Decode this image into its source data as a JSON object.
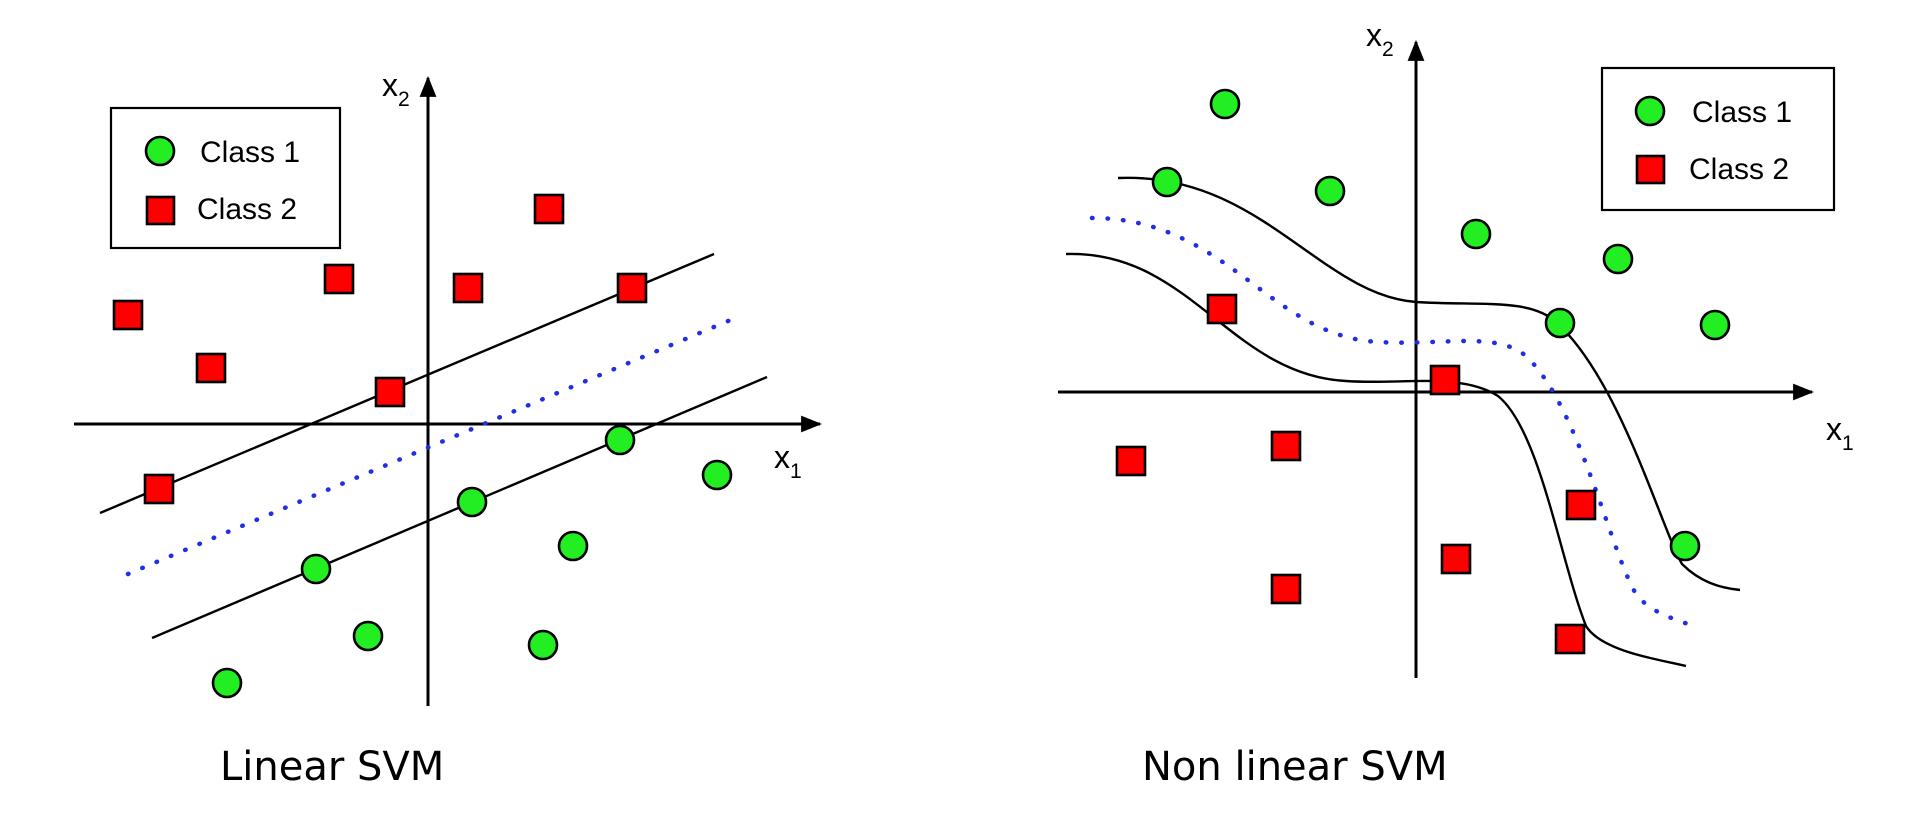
{
  "diagrams": [
    {
      "caption": "Linear SVM",
      "legend": {
        "class1": "Class 1",
        "class2": "Class 2"
      },
      "axes": {
        "x": "x",
        "x_sub": "1",
        "y": "x",
        "y_sub": "2"
      }
    },
    {
      "caption": "Non linear SVM",
      "legend": {
        "class1": "Class 1",
        "class2": "Class 2"
      },
      "axes": {
        "x": "x",
        "x_sub": "1",
        "y": "x",
        "y_sub": "2"
      }
    }
  ],
  "colors": {
    "class1": "#22ee22",
    "class2": "#ff0000",
    "boundary": "#1f2fe6"
  }
}
